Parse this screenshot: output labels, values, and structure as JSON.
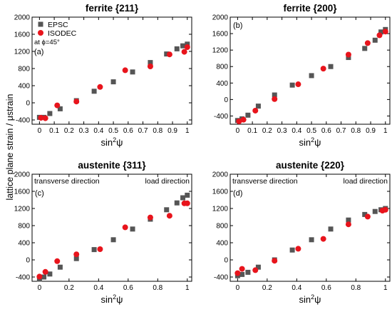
{
  "figure": {
    "ylabel_shared": "lattice plane strain / μstrain",
    "xlabel_main": "sin",
    "xlabel_sup": "2",
    "xlabel_psi": "ψ"
  },
  "styles": {
    "epsc_color": "#555555",
    "isodec_color": "#e8141c",
    "axis_color": "#000000"
  },
  "chart_data": [
    {
      "type": "scatter",
      "title": "ferrite {211}",
      "panel_label": "(a)",
      "xlabel": "sin²ψ",
      "ylabel": "lattice plane strain / μstrain",
      "xlim": [
        -0.05,
        1.03
      ],
      "ylim": [
        -500,
        2000
      ],
      "xticks": [
        0,
        0.1,
        0.2,
        0.3,
        0.4,
        0.5,
        0.6,
        0.7,
        0.8,
        0.9,
        1
      ],
      "xtick_labels": [
        "0",
        "0.1",
        "0.2",
        "0.3",
        "0.4",
        "0.5",
        "0.6",
        "0.7",
        "0.8",
        "0.9",
        "1"
      ],
      "yticks": [
        -400,
        0,
        400,
        800,
        1200,
        1600,
        2000
      ],
      "show_ytick_labels": true,
      "show_xtick_labels": true,
      "legend": {
        "position": "top-left",
        "entries": [
          {
            "name": "EPSC",
            "marker": "square",
            "series": 0
          },
          {
            "name": "ISODEC",
            "marker": "circle",
            "series": 1
          }
        ],
        "note": "at ϕ=45°"
      },
      "annotations": [],
      "series": [
        {
          "name": "EPSC",
          "marker": "square",
          "x": [
            0,
            0.03,
            0.07,
            0.14,
            0.25,
            0.37,
            0.5,
            0.63,
            0.75,
            0.86,
            0.93,
            0.97,
            1
          ],
          "y": [
            -340,
            -340,
            -250,
            -140,
            50,
            270,
            490,
            720,
            940,
            1140,
            1260,
            1330,
            1370
          ]
        },
        {
          "name": "ISODEC",
          "marker": "circle",
          "x": [
            0.01,
            0.04,
            0.12,
            0.25,
            0.41,
            0.58,
            0.75,
            0.88,
            0.98,
            1
          ],
          "y": [
            -350,
            -360,
            -60,
            30,
            370,
            760,
            850,
            1130,
            1190,
            1300
          ]
        }
      ]
    },
    {
      "type": "scatter",
      "title": "ferrite {200}",
      "panel_label": "(b)",
      "xlabel": "sin²ψ",
      "ylabel": "",
      "xlim": [
        -0.05,
        1.03
      ],
      "ylim": [
        -600,
        2000
      ],
      "xticks": [
        0,
        0.1,
        0.2,
        0.3,
        0.4,
        0.5,
        0.6,
        0.7,
        0.8,
        0.9,
        1
      ],
      "xtick_labels": [
        "0",
        "0.1",
        "0.2",
        "0.3",
        "0.4",
        "0.5",
        "0.6",
        "0.7",
        "0.8",
        "0.9",
        "1"
      ],
      "yticks": [
        -400,
        0,
        400,
        800,
        1200,
        1600,
        2000
      ],
      "show_ytick_labels": true,
      "show_xtick_labels": true,
      "annotations": [],
      "series": [
        {
          "name": "EPSC",
          "marker": "square",
          "x": [
            0,
            0.03,
            0.07,
            0.14,
            0.25,
            0.37,
            0.5,
            0.63,
            0.75,
            0.86,
            0.93,
            0.97,
            1
          ],
          "y": [
            -510,
            -470,
            -380,
            -160,
            110,
            350,
            580,
            800,
            1020,
            1240,
            1440,
            1640,
            1700
          ]
        },
        {
          "name": "ISODEC",
          "marker": "circle",
          "x": [
            0.01,
            0.04,
            0.12,
            0.25,
            0.41,
            0.58,
            0.75,
            0.88,
            0.96,
            1
          ],
          "y": [
            -530,
            -490,
            -270,
            10,
            370,
            750,
            1090,
            1370,
            1560,
            1650
          ]
        }
      ]
    },
    {
      "type": "scatter",
      "title": "austenite {311}",
      "panel_label": "(c)",
      "xlabel": "sin²ψ",
      "ylabel": "lattice plane strain / μstrain",
      "xlim": [
        -0.05,
        1.03
      ],
      "ylim": [
        -500,
        2000
      ],
      "xticks": [
        0,
        0.2,
        0.4,
        0.6,
        0.8,
        1
      ],
      "xtick_labels": [
        "0",
        "0.2",
        "0.4",
        "0.6",
        "0.8",
        "1"
      ],
      "yticks": [
        -400,
        0,
        400,
        800,
        1200,
        1600,
        2000
      ],
      "show_ytick_labels": true,
      "show_xtick_labels": true,
      "annotations": [
        {
          "text": "transverse direction",
          "align": "left"
        },
        {
          "text": "load direction",
          "align": "right"
        }
      ],
      "series": [
        {
          "name": "EPSC",
          "marker": "square",
          "x": [
            0,
            0.03,
            0.07,
            0.14,
            0.25,
            0.37,
            0.5,
            0.63,
            0.75,
            0.86,
            0.93,
            0.97,
            1
          ],
          "y": [
            -450,
            -400,
            -330,
            -170,
            30,
            240,
            470,
            720,
            950,
            1170,
            1330,
            1450,
            1510
          ]
        },
        {
          "name": "ISODEC",
          "marker": "circle",
          "x": [
            0,
            0.04,
            0.12,
            0.25,
            0.41,
            0.58,
            0.75,
            0.88,
            0.98,
            1
          ],
          "y": [
            -390,
            -280,
            -30,
            130,
            250,
            760,
            990,
            1030,
            1320,
            1320
          ]
        }
      ]
    },
    {
      "type": "scatter",
      "title": "austenite {220}",
      "panel_label": "(d)",
      "xlabel": "sin²ψ",
      "ylabel": "",
      "xlim": [
        -0.05,
        1.03
      ],
      "ylim": [
        -500,
        2000
      ],
      "xticks": [
        0,
        0.2,
        0.4,
        0.6,
        0.8,
        1
      ],
      "xtick_labels": [
        "0",
        "0.2",
        "0.4",
        "0.6",
        "0.8",
        "1"
      ],
      "yticks": [
        -400,
        0,
        400,
        800,
        1200,
        1600,
        2000
      ],
      "show_ytick_labels": true,
      "show_xtick_labels": true,
      "annotations": [
        {
          "text": "transverse direction",
          "align": "left"
        },
        {
          "text": "load direction",
          "align": "right"
        }
      ],
      "series": [
        {
          "name": "EPSC",
          "marker": "square",
          "x": [
            0,
            0.03,
            0.07,
            0.14,
            0.25,
            0.37,
            0.5,
            0.63,
            0.75,
            0.86,
            0.93,
            0.97,
            1
          ],
          "y": [
            -370,
            -340,
            -290,
            -170,
            0,
            230,
            470,
            720,
            930,
            1060,
            1130,
            1170,
            1200
          ]
        },
        {
          "name": "ISODEC",
          "marker": "circle",
          "x": [
            0,
            0.03,
            0.12,
            0.25,
            0.41,
            0.58,
            0.75,
            0.88,
            0.98,
            1
          ],
          "y": [
            -310,
            -210,
            -240,
            -20,
            260,
            490,
            830,
            1010,
            1150,
            1170
          ]
        }
      ]
    }
  ]
}
